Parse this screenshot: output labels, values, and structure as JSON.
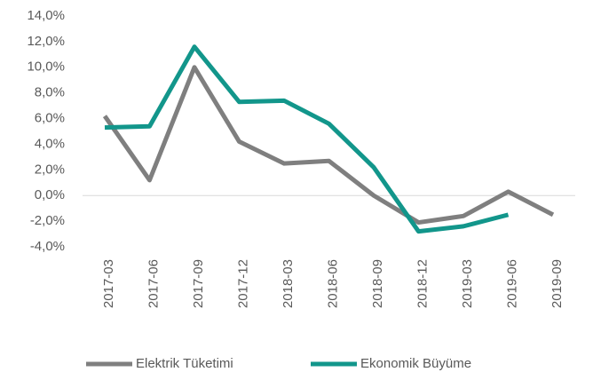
{
  "chart_data": {
    "type": "line",
    "categories": [
      "2017-03",
      "2017-06",
      "2017-09",
      "2017-12",
      "2018-03",
      "2018-06",
      "2018-09",
      "2018-12",
      "2019-03",
      "2019-06",
      "2019-09"
    ],
    "series": [
      {
        "name": "Elektrik Tüketimi",
        "color": "#7f7f7f",
        "values": [
          6.2,
          1.2,
          10.0,
          4.2,
          2.5,
          2.7,
          0.0,
          -2.1,
          -1.6,
          0.3,
          -1.5
        ]
      },
      {
        "name": "Ekonomik Büyüme",
        "color": "#12968b",
        "values": [
          5.3,
          5.4,
          11.6,
          7.3,
          7.4,
          5.6,
          2.2,
          -2.8,
          -2.4,
          -1.5,
          null
        ]
      }
    ],
    "ylim": [
      -4,
      14
    ],
    "yticks": [
      {
        "value": -4,
        "label": "-4,0%"
      },
      {
        "value": -2,
        "label": "-2,0%"
      },
      {
        "value": 0,
        "label": "0,0%"
      },
      {
        "value": 2,
        "label": "2,0%"
      },
      {
        "value": 4,
        "label": "4,0%"
      },
      {
        "value": 6,
        "label": "6,0%"
      },
      {
        "value": 8,
        "label": "8,0%"
      },
      {
        "value": 10,
        "label": "10,0%"
      },
      {
        "value": 12,
        "label": "12,0%"
      },
      {
        "value": 14,
        "label": "14,0%"
      }
    ],
    "legend": "bottom"
  }
}
